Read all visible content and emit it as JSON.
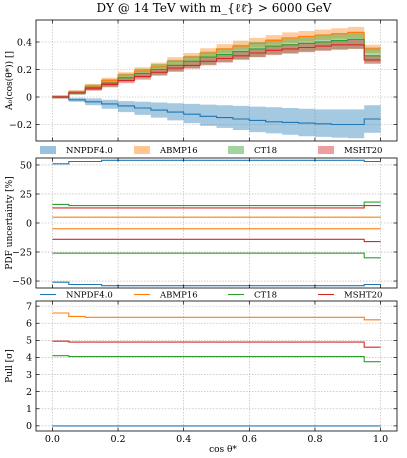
{
  "figure": {
    "title": "DY @ 14 TeV with m_{ℓℓ̄} > 6000 GeV",
    "xlabel": "cos θ*"
  },
  "colors": {
    "NNPDF4.0": "#1f77b4",
    "ABMP16": "#ff7f0e",
    "CT18": "#2ca02c",
    "MSHT20": "#d62728"
  },
  "legend": {
    "placement": "between panels",
    "entries": [
      "NNPDF4.0",
      "ABMP16",
      "CT18",
      "MSHT20"
    ]
  },
  "chart_data": [
    {
      "type": "area",
      "ylabel": "A₀(cos(θ*)) []",
      "xlim": [
        -0.05,
        1.05
      ],
      "ylim": [
        -0.32,
        0.56
      ],
      "yticks": [
        -0.2,
        0.0,
        0.2,
        0.4
      ],
      "grid": true,
      "edges": [
        0.0,
        0.05,
        0.1,
        0.15,
        0.2,
        0.25,
        0.3,
        0.35,
        0.4,
        0.45,
        0.5,
        0.55,
        0.6,
        0.65,
        0.7,
        0.75,
        0.8,
        0.85,
        0.9,
        0.95,
        1.0
      ],
      "series": [
        {
          "name": "NNPDF4.0",
          "central": [
            0.0,
            -0.02,
            -0.035,
            -0.05,
            -0.065,
            -0.08,
            -0.095,
            -0.11,
            -0.125,
            -0.14,
            -0.15,
            -0.16,
            -0.17,
            -0.18,
            -0.185,
            -0.19,
            -0.195,
            -0.2,
            -0.2,
            -0.16
          ],
          "upper": [
            0.01,
            -0.005,
            -0.01,
            -0.02,
            -0.03,
            -0.035,
            -0.04,
            -0.045,
            -0.05,
            -0.055,
            -0.06,
            -0.065,
            -0.07,
            -0.075,
            -0.08,
            -0.085,
            -0.09,
            -0.09,
            -0.09,
            -0.06
          ],
          "lower": [
            -0.01,
            -0.035,
            -0.06,
            -0.085,
            -0.11,
            -0.13,
            -0.15,
            -0.17,
            -0.19,
            -0.21,
            -0.225,
            -0.24,
            -0.255,
            -0.265,
            -0.275,
            -0.285,
            -0.29,
            -0.295,
            -0.3,
            -0.26
          ]
        },
        {
          "name": "ABMP16",
          "central": [
            0.0,
            0.04,
            0.08,
            0.12,
            0.16,
            0.19,
            0.22,
            0.26,
            0.29,
            0.32,
            0.35,
            0.37,
            0.39,
            0.41,
            0.43,
            0.44,
            0.45,
            0.46,
            0.47,
            0.35
          ],
          "upper": [
            0.01,
            0.05,
            0.095,
            0.14,
            0.18,
            0.215,
            0.25,
            0.29,
            0.32,
            0.355,
            0.385,
            0.41,
            0.43,
            0.45,
            0.47,
            0.48,
            0.49,
            0.5,
            0.51,
            0.38
          ],
          "lower": [
            -0.01,
            0.03,
            0.065,
            0.1,
            0.14,
            0.17,
            0.2,
            0.23,
            0.26,
            0.29,
            0.32,
            0.34,
            0.36,
            0.38,
            0.395,
            0.405,
            0.415,
            0.425,
            0.43,
            0.32
          ]
        },
        {
          "name": "CT18",
          "central": [
            0.0,
            0.03,
            0.07,
            0.1,
            0.14,
            0.17,
            0.2,
            0.23,
            0.26,
            0.29,
            0.31,
            0.33,
            0.35,
            0.37,
            0.38,
            0.39,
            0.4,
            0.41,
            0.42,
            0.3
          ],
          "upper": [
            0.01,
            0.045,
            0.09,
            0.13,
            0.17,
            0.205,
            0.24,
            0.27,
            0.3,
            0.33,
            0.355,
            0.38,
            0.4,
            0.42,
            0.43,
            0.445,
            0.455,
            0.465,
            0.475,
            0.36
          ],
          "lower": [
            -0.01,
            0.015,
            0.05,
            0.075,
            0.11,
            0.135,
            0.16,
            0.185,
            0.21,
            0.235,
            0.255,
            0.275,
            0.29,
            0.31,
            0.32,
            0.33,
            0.34,
            0.345,
            0.35,
            0.25
          ]
        },
        {
          "name": "MSHT20",
          "central": [
            0.0,
            0.03,
            0.06,
            0.09,
            0.12,
            0.15,
            0.18,
            0.21,
            0.23,
            0.26,
            0.28,
            0.3,
            0.32,
            0.34,
            0.35,
            0.36,
            0.37,
            0.38,
            0.38,
            0.27
          ],
          "upper": [
            0.01,
            0.04,
            0.075,
            0.11,
            0.14,
            0.175,
            0.2,
            0.235,
            0.26,
            0.29,
            0.31,
            0.335,
            0.35,
            0.37,
            0.385,
            0.395,
            0.405,
            0.415,
            0.42,
            0.3
          ],
          "lower": [
            -0.01,
            0.02,
            0.045,
            0.07,
            0.1,
            0.125,
            0.155,
            0.185,
            0.205,
            0.23,
            0.25,
            0.27,
            0.29,
            0.305,
            0.315,
            0.325,
            0.335,
            0.345,
            0.35,
            0.24
          ]
        }
      ]
    },
    {
      "type": "line",
      "ylabel": "PDF uncertainty [%]",
      "xlim": [
        -0.05,
        1.05
      ],
      "ylim": [
        -56,
        56
      ],
      "yticks": [
        -50,
        -25,
        0,
        25,
        50
      ],
      "grid": true,
      "edges": [
        0.0,
        0.05,
        0.1,
        0.15,
        0.2,
        0.25,
        0.3,
        0.35,
        0.4,
        0.45,
        0.5,
        0.55,
        0.6,
        0.65,
        0.7,
        0.75,
        0.8,
        0.85,
        0.9,
        0.95,
        1.0
      ],
      "series": [
        {
          "name": "NNPDF4.0 upper",
          "values": [
            51,
            53,
            53,
            54,
            54,
            54,
            54,
            54,
            54,
            54,
            54,
            54,
            54,
            54,
            54,
            54,
            54,
            54,
            54,
            53
          ]
        },
        {
          "name": "NNPDF4.0 lower",
          "values": [
            -51,
            -53,
            -53,
            -54,
            -54,
            -54,
            -54,
            -54,
            -54,
            -54,
            -54,
            -54,
            -54,
            -54,
            -54,
            -54,
            -54,
            -54,
            -54,
            -53
          ]
        },
        {
          "name": "ABMP16 upper",
          "values": [
            5,
            5,
            5,
            5,
            5,
            5,
            5,
            5,
            5,
            5,
            5,
            5,
            5,
            5,
            5,
            5,
            5,
            5,
            5,
            5
          ]
        },
        {
          "name": "ABMP16 lower",
          "values": [
            -5,
            -5,
            -5,
            -5,
            -5,
            -5,
            -5,
            -5,
            -5,
            -5,
            -5,
            -5,
            -5,
            -5,
            -5,
            -5,
            -5,
            -5,
            -5,
            -5
          ]
        },
        {
          "name": "CT18 upper",
          "values": [
            16,
            15,
            15,
            15,
            15,
            15,
            15,
            15,
            15,
            15,
            15,
            15,
            15,
            15,
            15,
            15,
            15,
            15,
            15,
            18
          ]
        },
        {
          "name": "CT18 lower",
          "values": [
            -26,
            -26,
            -26,
            -26,
            -26,
            -26,
            -26,
            -26,
            -26,
            -26,
            -26,
            -26,
            -26,
            -26,
            -26,
            -26,
            -26,
            -26,
            -26,
            -30
          ]
        },
        {
          "name": "MSHT20 upper",
          "values": [
            13,
            13,
            13,
            13,
            13,
            13,
            13,
            13,
            13,
            13,
            13,
            13,
            13,
            13,
            13,
            13,
            13,
            13,
            13,
            15
          ]
        },
        {
          "name": "MSHT20 lower",
          "values": [
            -14,
            -14,
            -14,
            -14,
            -14,
            -14,
            -14,
            -14,
            -14,
            -14,
            -14,
            -14,
            -14,
            -14,
            -14,
            -14,
            -14,
            -14,
            -14,
            -16
          ]
        }
      ]
    },
    {
      "type": "line",
      "ylabel": "Pull [σ]",
      "xlim": [
        -0.05,
        1.05
      ],
      "ylim": [
        -0.3,
        7.3
      ],
      "yticks": [
        0,
        1,
        2,
        3,
        4,
        5,
        6,
        7
      ],
      "grid": true,
      "edges": [
        0.0,
        0.05,
        0.1,
        0.15,
        0.2,
        0.25,
        0.3,
        0.35,
        0.4,
        0.45,
        0.5,
        0.55,
        0.6,
        0.65,
        0.7,
        0.75,
        0.8,
        0.85,
        0.9,
        0.95,
        1.0
      ],
      "series": [
        {
          "name": "NNPDF4.0",
          "values": [
            0,
            0,
            0,
            0,
            0,
            0,
            0,
            0,
            0,
            0,
            0,
            0,
            0,
            0,
            0,
            0,
            0,
            0,
            0,
            0
          ]
        },
        {
          "name": "ABMP16",
          "values": [
            6.6,
            6.4,
            6.35,
            6.35,
            6.35,
            6.35,
            6.35,
            6.35,
            6.35,
            6.35,
            6.35,
            6.35,
            6.35,
            6.35,
            6.35,
            6.35,
            6.35,
            6.35,
            6.35,
            6.2
          ]
        },
        {
          "name": "CT18",
          "values": [
            4.1,
            4.05,
            4.05,
            4.05,
            4.05,
            4.05,
            4.05,
            4.05,
            4.05,
            4.05,
            4.05,
            4.05,
            4.05,
            4.05,
            4.05,
            4.05,
            4.05,
            4.05,
            4.05,
            3.75
          ]
        },
        {
          "name": "MSHT20",
          "values": [
            4.95,
            4.9,
            4.9,
            4.9,
            4.9,
            4.9,
            4.9,
            4.9,
            4.9,
            4.9,
            4.9,
            4.9,
            4.9,
            4.9,
            4.9,
            4.9,
            4.9,
            4.9,
            4.9,
            4.6
          ]
        }
      ]
    }
  ]
}
